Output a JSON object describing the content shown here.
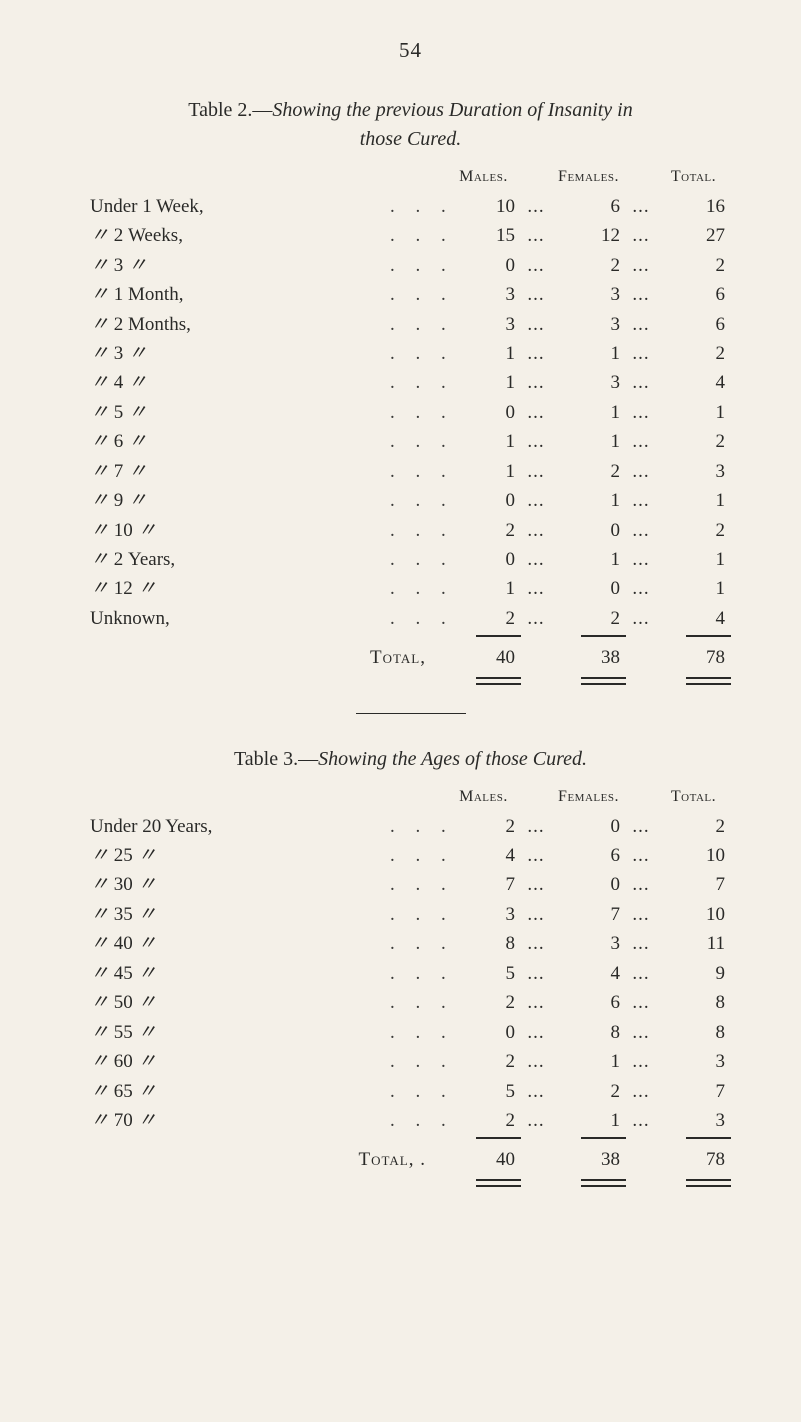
{
  "pageNumber": "54",
  "dots": ". . . . . . . . . . . .",
  "ellipsis": "...",
  "comma": ",",
  "tables": [
    {
      "titlePrefix": "Table 2.—",
      "titleItalic": "Showing the previous Duration of Insanity in",
      "subtitle": "those Cured.",
      "headers": {
        "males": "Males.",
        "females": "Females.",
        "total": "Total."
      },
      "rows": [
        {
          "label": "Under 1 Week,",
          "m": "10",
          "f": "6",
          "t": "16"
        },
        {
          "label": "〃   2 Weeks,",
          "m": "15",
          "f": "12",
          "t": "27"
        },
        {
          "label": "〃   3   〃",
          "m": "0",
          "f": "2",
          "t": "2"
        },
        {
          "label": "〃   1 Month,",
          "m": "3",
          "f": "3",
          "t": "6"
        },
        {
          "label": "〃   2 Months,",
          "m": "3",
          "f": "3",
          "t": "6"
        },
        {
          "label": "〃   3   〃",
          "m": "1",
          "f": "1",
          "t": "2"
        },
        {
          "label": "〃   4   〃",
          "m": "1",
          "f": "3",
          "t": "4"
        },
        {
          "label": "〃   5   〃",
          "m": "0",
          "f": "1",
          "t": "1"
        },
        {
          "label": "〃   6   〃",
          "m": "1",
          "f": "1",
          "t": "2"
        },
        {
          "label": "〃   7   〃",
          "m": "1",
          "f": "2",
          "t": "3"
        },
        {
          "label": "〃   9   〃",
          "m": "0",
          "f": "1",
          "t": "1"
        },
        {
          "label": "〃  10   〃",
          "m": "2",
          "f": "0",
          "t": "2"
        },
        {
          "label": "〃   2 Years,",
          "m": "0",
          "f": "1",
          "t": "1"
        },
        {
          "label": "〃  12   〃",
          "m": "1",
          "f": "0",
          "t": "1"
        },
        {
          "label": "Unknown,",
          "m": "2",
          "f": "2",
          "t": "4"
        }
      ],
      "totalLabel": "Total,",
      "totals": {
        "m": "40",
        "f": "38",
        "t": "78"
      }
    },
    {
      "titlePrefix": "Table 3.—",
      "titleItalic": "Showing the Ages of those Cured.",
      "subtitle": "",
      "headers": {
        "males": "Males.",
        "females": "Females.",
        "total": "Total."
      },
      "rows": [
        {
          "label": "Under 20 Years,",
          "m": "2",
          "f": "0",
          "t": "2"
        },
        {
          "label": "〃   25   〃",
          "m": "4",
          "f": "6",
          "t": "10"
        },
        {
          "label": "〃   30   〃",
          "m": "7",
          "f": "0",
          "t": "7"
        },
        {
          "label": "〃   35   〃",
          "m": "3",
          "f": "7",
          "t": "10"
        },
        {
          "label": "〃   40   〃",
          "m": "8",
          "f": "3",
          "t": "11"
        },
        {
          "label": "〃   45   〃",
          "m": "5",
          "f": "4",
          "t": "9"
        },
        {
          "label": "〃   50   〃",
          "m": "2",
          "f": "6",
          "t": "8"
        },
        {
          "label": "〃   55   〃",
          "m": "0",
          "f": "8",
          "t": "8"
        },
        {
          "label": "〃   60   〃",
          "m": "2",
          "f": "1",
          "t": "3"
        },
        {
          "label": "〃   65   〃",
          "m": "5",
          "f": "2",
          "t": "7"
        },
        {
          "label": "〃   70   〃",
          "m": "2",
          "f": "1",
          "t": "3"
        }
      ],
      "totalLabel": "Total, .",
      "totals": {
        "m": "40",
        "f": "38",
        "t": "78"
      }
    }
  ]
}
